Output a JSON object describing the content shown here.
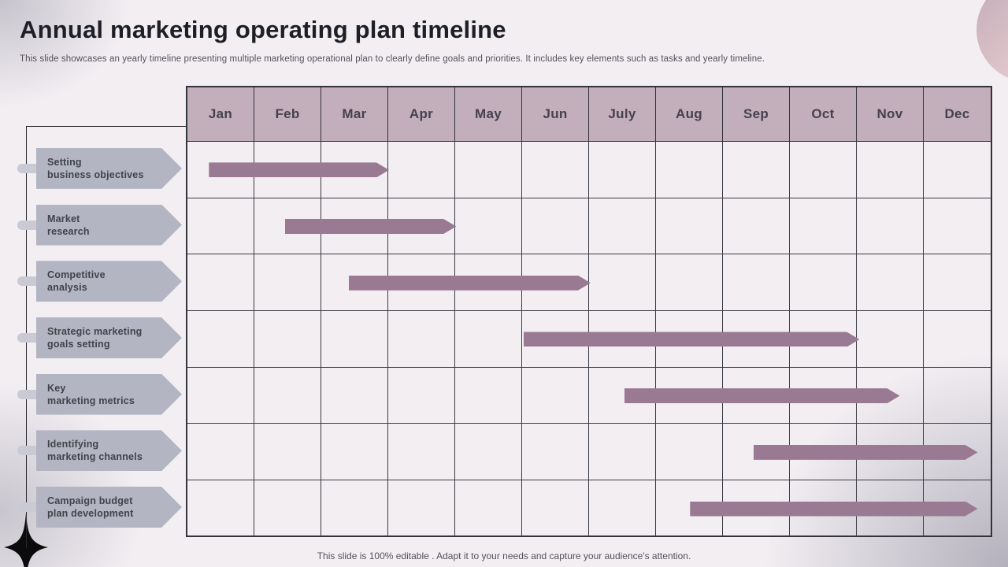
{
  "slide": {
    "title": "Annual marketing operating plan timeline",
    "subtitle": "This slide showcases an yearly timeline presenting multiple marketing operational plan to clearly define goals and priorities. It includes key elements such as tasks and yearly timeline.",
    "footer": "This slide is 100% editable . Adapt it to your needs and capture your audience's attention."
  },
  "colors": {
    "background": "#f2eef2",
    "month_header_fill": "#c3aebb",
    "month_header_text": "#46414d",
    "grid_line": "#3b3b44",
    "bar_fill": "#9a7a93",
    "task_chevron_fill": "#b3b5c2",
    "task_text": "#3f434b",
    "connector_fill": "#c9cad4",
    "axis_line": "#27272e",
    "title_text": "#1e1e26",
    "muted_text": "#55505c",
    "accent_circle_start": "#c3abb8",
    "accent_circle_end": "#f0d9da",
    "star_fill": "#0b0b0e"
  },
  "chart_data": {
    "type": "bar",
    "subtype": "gantt-timeline",
    "title": "Annual marketing operating plan timeline",
    "x_tick_labels": [
      "Jan",
      "Feb",
      "Mar",
      "Apr",
      "May",
      "Jun",
      "July",
      "Aug",
      "Sep",
      "Oct",
      "Nov",
      "Dec"
    ],
    "x_range_months": [
      0,
      12
    ],
    "grid": true,
    "legend": false,
    "tasks": [
      {
        "label_line1": "Setting",
        "label_line2": "business objectives",
        "start_month": 0.32,
        "end_month": 3.0
      },
      {
        "label_line1": "Market",
        "label_line2": "research",
        "start_month": 1.45,
        "end_month": 4.0
      },
      {
        "label_line1": "Competitive",
        "label_line2": "analysis",
        "start_month": 2.4,
        "end_month": 6.0
      },
      {
        "label_line1": "Strategic marketing",
        "label_line2": "goals setting",
        "start_month": 5.0,
        "end_month": 10.0
      },
      {
        "label_line1": "Key",
        "label_line2": "marketing metrics",
        "start_month": 6.5,
        "end_month": 10.6
      },
      {
        "label_line1": "Identifying",
        "label_line2": "marketing channels",
        "start_month": 8.42,
        "end_month": 11.76
      },
      {
        "label_line1": "Campaign budget",
        "label_line2": "plan development",
        "start_month": 7.48,
        "end_month": 11.76
      }
    ]
  }
}
